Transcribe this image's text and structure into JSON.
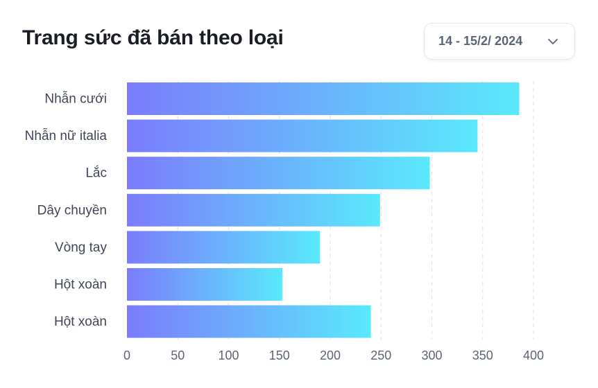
{
  "header": {
    "title": "Trang sức đã bán theo loại",
    "date_range": "14 - 15/2/ 2024",
    "dropdown_icon": "chevron-down-icon"
  },
  "chart_data": {
    "type": "bar",
    "orientation": "horizontal",
    "title": "Trang sức đã bán theo loại",
    "categories": [
      "Nhẫn cưới",
      "Nhẫn nữ italia",
      "Lắc",
      "Dây chuyền",
      "Vòng tay",
      "Hột xoàn",
      "Hột xoàn"
    ],
    "values": [
      386,
      345,
      298,
      249,
      190,
      153,
      240
    ],
    "xlim": [
      0,
      400
    ],
    "xticks": [
      0,
      50,
      100,
      150,
      200,
      250,
      300,
      350,
      400
    ],
    "xlabel": "",
    "ylabel": "",
    "grid": "vertical-dashed",
    "bar_gradient": [
      "#7b7cfc",
      "#5ae9fc"
    ]
  },
  "colors": {
    "title": "#1a1d24",
    "label": "#3f4656",
    "tick": "#5b6577",
    "grid": "#e1e4ea"
  }
}
